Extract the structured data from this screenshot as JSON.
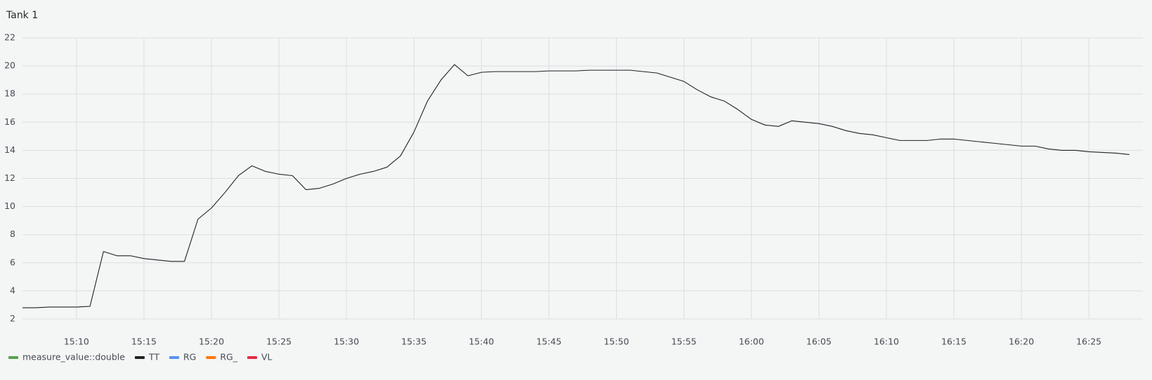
{
  "chart_data": {
    "type": "line",
    "title": "Tank 1",
    "x": [
      "15:06",
      "15:07",
      "15:08",
      "15:09",
      "15:10",
      "15:11",
      "15:12",
      "15:13",
      "15:14",
      "15:15",
      "15:16",
      "15:17",
      "15:18",
      "15:19",
      "15:20",
      "15:21",
      "15:22",
      "15:23",
      "15:24",
      "15:25",
      "15:26",
      "15:27",
      "15:28",
      "15:29",
      "15:30",
      "15:31",
      "15:32",
      "15:33",
      "15:34",
      "15:35",
      "15:36",
      "15:37",
      "15:38",
      "15:39",
      "15:40",
      "15:41",
      "15:42",
      "15:43",
      "15:44",
      "15:45",
      "15:46",
      "15:47",
      "15:48",
      "15:49",
      "15:50",
      "15:51",
      "15:52",
      "15:53",
      "15:54",
      "15:55",
      "15:56",
      "15:57",
      "15:58",
      "15:59",
      "16:00",
      "16:01",
      "16:02",
      "16:03",
      "16:04",
      "16:05",
      "16:06",
      "16:07",
      "16:08",
      "16:09",
      "16:10",
      "16:11",
      "16:12",
      "16:13",
      "16:14",
      "16:15",
      "16:16",
      "16:17",
      "16:18",
      "16:19",
      "16:20",
      "16:21",
      "16:22",
      "16:23",
      "16:24",
      "16:25",
      "16:26",
      "16:27",
      "16:28"
    ],
    "series": [
      {
        "name": "measure_value::double",
        "color": "#56a64b",
        "values": [
          null,
          null,
          null,
          null,
          null,
          null,
          null,
          null,
          null,
          null,
          null,
          null,
          null,
          null,
          null,
          null,
          null,
          null,
          null,
          null,
          null,
          null,
          null,
          null,
          null,
          null,
          null,
          null,
          null,
          null,
          null,
          null,
          null,
          null,
          null,
          null,
          null,
          null,
          null,
          null,
          null,
          null,
          null,
          null,
          null,
          null,
          null,
          null,
          null,
          null,
          null,
          null,
          null,
          null,
          null,
          null,
          null,
          null,
          null,
          null,
          null,
          null,
          null,
          null,
          null,
          null,
          null,
          null,
          null,
          null,
          null,
          null,
          null,
          null,
          null,
          null,
          null,
          null,
          null,
          null,
          null,
          null,
          null
        ]
      },
      {
        "name": "TT",
        "color": "#202226",
        "values": [
          2.8,
          2.8,
          2.85,
          2.85,
          2.85,
          2.9,
          6.8,
          6.5,
          6.5,
          6.3,
          6.2,
          6.1,
          6.1,
          9.1,
          9.9,
          11.0,
          12.2,
          12.9,
          12.5,
          12.3,
          12.2,
          11.2,
          11.3,
          11.6,
          12.0,
          12.3,
          12.5,
          12.8,
          13.6,
          15.3,
          17.5,
          19.0,
          20.1,
          19.3,
          19.55,
          19.6,
          19.6,
          19.6,
          19.6,
          19.65,
          19.65,
          19.65,
          19.7,
          19.7,
          19.7,
          19.7,
          19.6,
          19.5,
          19.2,
          18.9,
          18.3,
          17.8,
          17.5,
          16.9,
          16.2,
          15.8,
          15.7,
          16.1,
          16.0,
          15.9,
          15.7,
          15.4,
          15.2,
          15.1,
          14.9,
          14.7,
          14.7,
          14.7,
          14.8,
          14.8,
          14.7,
          14.6,
          14.5,
          14.4,
          14.3,
          14.3,
          14.1,
          14.0,
          14.0,
          13.9,
          13.85,
          13.8,
          13.7
        ]
      },
      {
        "name": "RG",
        "color": "#5794f2",
        "values": [
          null,
          null,
          null,
          null,
          null,
          null,
          null,
          null,
          null,
          null,
          null,
          null,
          null,
          null,
          null,
          null,
          null,
          null,
          null,
          null,
          null,
          null,
          null,
          null,
          null,
          null,
          null,
          null,
          null,
          null,
          null,
          null,
          null,
          null,
          null,
          null,
          null,
          null,
          null,
          null,
          null,
          null,
          null,
          null,
          null,
          null,
          null,
          null,
          null,
          null,
          null,
          null,
          null,
          null,
          null,
          null,
          null,
          null,
          null,
          null,
          null,
          null,
          null,
          null,
          null,
          null,
          null,
          null,
          null,
          null,
          null,
          null,
          null,
          null,
          null,
          null,
          null,
          null,
          null,
          null,
          null,
          null,
          null
        ]
      },
      {
        "name": "RG_",
        "color": "#ff780a",
        "values": [
          null,
          null,
          null,
          null,
          null,
          null,
          null,
          null,
          null,
          null,
          null,
          null,
          null,
          null,
          null,
          null,
          null,
          null,
          null,
          null,
          null,
          null,
          null,
          null,
          null,
          null,
          null,
          null,
          null,
          null,
          null,
          null,
          null,
          null,
          null,
          null,
          null,
          null,
          null,
          null,
          null,
          null,
          null,
          null,
          null,
          null,
          null,
          null,
          null,
          null,
          null,
          null,
          null,
          null,
          null,
          null,
          null,
          null,
          null,
          null,
          null,
          null,
          null,
          null,
          null,
          null,
          null,
          null,
          null,
          null,
          null,
          null,
          null,
          null,
          null,
          null,
          null,
          null,
          null,
          null,
          null,
          null,
          null
        ]
      },
      {
        "name": "VL",
        "color": "#e02f44",
        "values": [
          null,
          null,
          null,
          null,
          null,
          null,
          null,
          null,
          null,
          null,
          null,
          null,
          null,
          null,
          null,
          null,
          null,
          null,
          null,
          null,
          null,
          null,
          null,
          null,
          null,
          null,
          null,
          null,
          null,
          null,
          null,
          null,
          null,
          null,
          null,
          null,
          null,
          null,
          null,
          null,
          null,
          null,
          null,
          null,
          null,
          null,
          null,
          null,
          null,
          null,
          null,
          null,
          null,
          null,
          null,
          null,
          null,
          null,
          null,
          null,
          null,
          null,
          null,
          null,
          null,
          null,
          null,
          null,
          null,
          null,
          null,
          null,
          null,
          null,
          null,
          null,
          null,
          null,
          null,
          null,
          null,
          null,
          null
        ]
      }
    ],
    "xlim": [
      "15:06",
      "16:29"
    ],
    "xticks": [
      "15:10",
      "15:15",
      "15:20",
      "15:25",
      "15:30",
      "15:35",
      "15:40",
      "15:45",
      "15:50",
      "15:55",
      "16:00",
      "16:05",
      "16:10",
      "16:15",
      "16:20",
      "16:25"
    ],
    "ylim": [
      2,
      22
    ],
    "yticks": [
      2,
      4,
      6,
      8,
      10,
      12,
      14,
      16,
      18,
      20,
      22
    ],
    "grid": true,
    "legend": "bottom-left"
  }
}
